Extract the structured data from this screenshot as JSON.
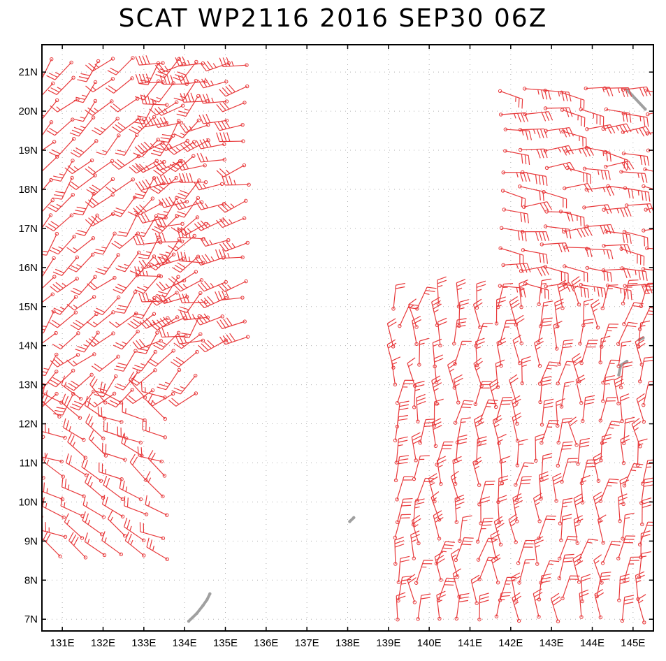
{
  "title": "SCAT WP2116 2016 SEP30 06Z",
  "axes": {
    "lon_range": [
      130.5,
      145.5
    ],
    "lat_range": [
      6.7,
      21.7
    ],
    "lon_ticks": [
      131,
      132,
      133,
      134,
      135,
      136,
      137,
      138,
      139,
      140,
      141,
      142,
      143,
      144,
      145
    ],
    "lat_ticks": [
      7,
      8,
      9,
      10,
      11,
      12,
      13,
      14,
      15,
      16,
      17,
      18,
      19,
      20,
      21
    ],
    "lon_labels": [
      "131E",
      "132E",
      "133E",
      "134E",
      "135E",
      "136E",
      "137E",
      "138E",
      "139E",
      "140E",
      "141E",
      "142E",
      "143E",
      "144E",
      "145E"
    ],
    "lat_labels": [
      "7N",
      "8N",
      "9N",
      "10N",
      "11N",
      "12N",
      "13N",
      "14N",
      "15N",
      "16N",
      "17N",
      "18N",
      "19N",
      "20N",
      "21N"
    ],
    "grid": "dotted"
  },
  "colors": {
    "barb": "#e8393b",
    "land": "#a0a0a0",
    "grid": "#b0b0b0",
    "frame": "#000000"
  },
  "swaths": [
    {
      "name": "west-swath-main",
      "lon": [
        130.8,
        134.6
      ],
      "lat": [
        12.8,
        21.6
      ],
      "dir_from": [
        205,
        240
      ],
      "speed_kt": [
        15,
        35
      ]
    },
    {
      "name": "west-swath-inner",
      "lon": [
        133.5,
        135.8
      ],
      "lat": [
        14.2,
        21.6
      ],
      "dir_from": [
        240,
        275
      ],
      "speed_kt": [
        25,
        45
      ]
    },
    {
      "name": "west-swath-south",
      "lon": [
        130.5,
        133.5
      ],
      "lat": [
        8.6,
        12.8
      ],
      "dir_from": [
        280,
        320
      ],
      "speed_kt": [
        15,
        30
      ]
    },
    {
      "name": "east-swath-north",
      "lon": [
        141.8,
        145.5
      ],
      "lat": [
        15.5,
        20.9
      ],
      "dir_from": [
        75,
        110
      ],
      "speed_kt": [
        20,
        40
      ]
    },
    {
      "name": "east-swath-south",
      "lon": [
        139.2,
        145.5
      ],
      "lat": [
        7.0,
        15.0
      ],
      "dir_from": [
        340,
        25
      ],
      "speed_kt": [
        15,
        35
      ]
    }
  ],
  "land": [
    {
      "name": "palau-islands",
      "points": [
        [
          134.1,
          6.95
        ],
        [
          134.3,
          7.15
        ],
        [
          134.45,
          7.35
        ],
        [
          134.55,
          7.5
        ],
        [
          134.62,
          7.65
        ]
      ]
    },
    {
      "name": "ngulu-atoll",
      "points": [
        [
          138.05,
          9.5
        ],
        [
          138.15,
          9.6
        ]
      ]
    },
    {
      "name": "guam-island",
      "points": [
        [
          144.65,
          13.25
        ],
        [
          144.7,
          13.5
        ],
        [
          144.85,
          13.6
        ]
      ]
    },
    {
      "name": "rota-island",
      "points": [
        [
          145.15,
          14.15
        ],
        [
          145.25,
          14.2
        ]
      ]
    },
    {
      "name": "isolated-rocks",
      "points": [
        [
          144.85,
          20.55
        ],
        [
          145.3,
          20.05
        ]
      ]
    }
  ]
}
